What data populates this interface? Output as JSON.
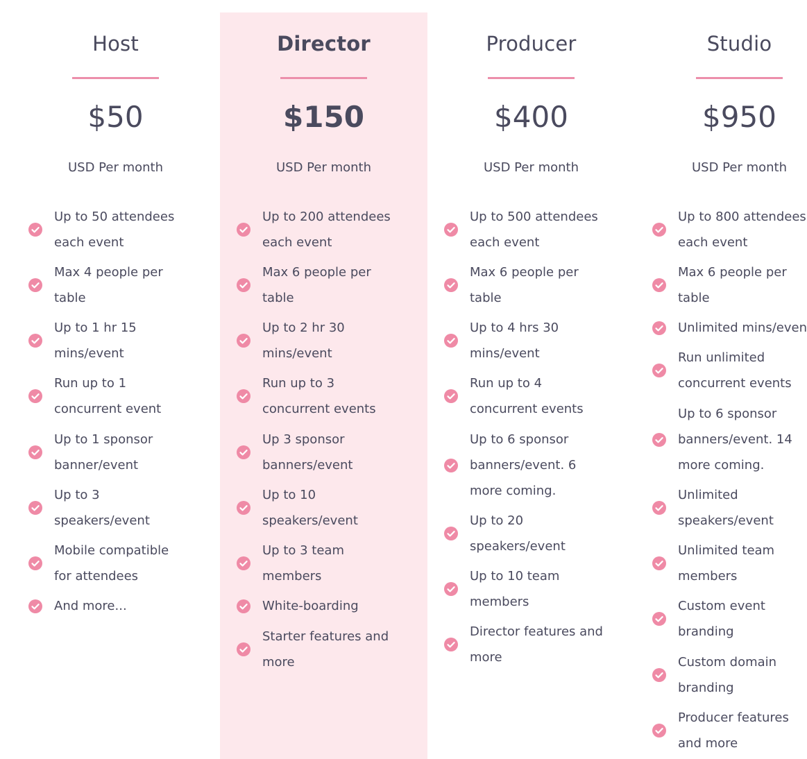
{
  "plans": [
    {
      "name": "Host",
      "price": "$50",
      "period": "USD Per month",
      "features": [
        "Up to 50 attendees\neach event",
        "Max 4 people per\ntable",
        "Up to 1 hr 15\nmins/event",
        "Run up to 1\nconcurrent event",
        "Up to 1 sponsor\nbanner/event",
        "Up to 3\nspeakers/event",
        "Mobile compatible\nfor attendees",
        "And more..."
      ]
    },
    {
      "name": "Director",
      "price": "$150",
      "period": "USD Per month",
      "features": [
        "Up to 200 attendees\neach event",
        "Max 6 people per\ntable",
        "Up to 2 hr 30\nmins/event",
        "Run up to 3\nconcurrent events",
        "Up 3 sponsor\nbanners/event",
        "Up to 10\nspeakers/event",
        "Up to 3 team\nmembers",
        "White-boarding",
        "Starter features and\nmore"
      ]
    },
    {
      "name": "Producer",
      "price": "$400",
      "period": "USD Per month",
      "features": [
        "Up to 500 attendees\neach event",
        "Max 6 people per\ntable",
        "Up to 4 hrs 30\nmins/event",
        "Run up to 4\nconcurrent events",
        "Up to 6 sponsor\nbanners/event. 6\nmore coming.",
        "Up to 20\nspeakers/event",
        "Up to 10 team\nmembers",
        "Director features and\nmore"
      ]
    },
    {
      "name": "Studio",
      "price": "$950",
      "period": "USD Per month",
      "features": [
        "Up to 800 attendees\neach event",
        "Max 6 people per\ntable",
        "Unlimited mins/event",
        "Run unlimited\nconcurrent events",
        "Up to 6 sponsor\nbanners/event. 14\nmore coming.",
        "Unlimited\nspeakers/event",
        "Unlimited team\nmembers",
        "Custom event\nbranding",
        "Custom domain\nbranding",
        "Producer features\nand more"
      ]
    }
  ],
  "highlighted_plan": "Director",
  "colors": {
    "accent": "#ec8fab",
    "check": "#ef8aa6",
    "highlight_bg": "#fde8ec",
    "text": "#4a4a5e"
  },
  "icons": {
    "feature": "check-circle-icon"
  }
}
